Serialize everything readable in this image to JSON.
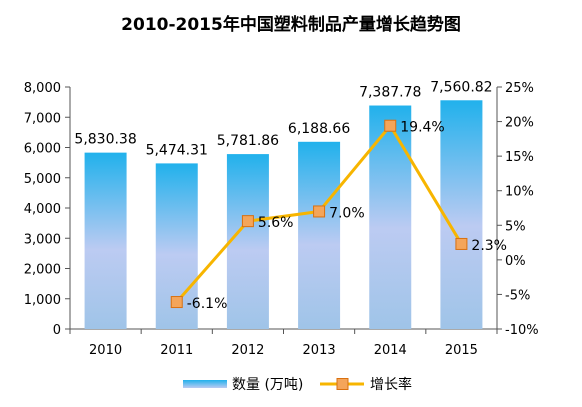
{
  "chart_data": {
    "type": "bar",
    "title": "2010-2015年中国塑料制品产量增长趋势图",
    "categories": [
      "2010",
      "2011",
      "2012",
      "2013",
      "2014",
      "2015"
    ],
    "series": [
      {
        "name": "数量 (万吨)",
        "type": "bar",
        "axis": "left",
        "values": [
          5830.38,
          5474.31,
          5781.86,
          6188.66,
          7387.78,
          7560.82
        ],
        "labels": [
          "5,830.38",
          "5,474.31",
          "5,781.86",
          "6,188.66",
          "7,387.78",
          "7,560.82"
        ]
      },
      {
        "name": "增长率",
        "type": "line",
        "axis": "right",
        "values": [
          null,
          -6.1,
          5.6,
          7.0,
          19.4,
          2.3
        ],
        "labels": [
          "",
          "-6.1%",
          "5.6%",
          "7.0%",
          "19.4%",
          "2.3%"
        ]
      }
    ],
    "y_left": {
      "min": 0,
      "max": 8000,
      "step": 1000,
      "ticks": [
        "0",
        "1,000",
        "2,000",
        "3,000",
        "4,000",
        "5,000",
        "6,000",
        "7,000",
        "8,000"
      ]
    },
    "y_right": {
      "min": -10,
      "max": 25,
      "step": 5,
      "ticks": [
        "-10%",
        "-5%",
        "0%",
        "5%",
        "10%",
        "15%",
        "20%",
        "25%"
      ]
    },
    "legend_position": "bottom",
    "grid": false,
    "colors": {
      "bar_top": "#21b1ec",
      "bar_mid": "#bccbf2",
      "bar_bottom": "#9fc4e8",
      "line": "#f7b500",
      "marker_fill": "#f4a55a",
      "marker_stroke": "#d9700f",
      "axis": "#555555",
      "text": "#000000"
    }
  }
}
